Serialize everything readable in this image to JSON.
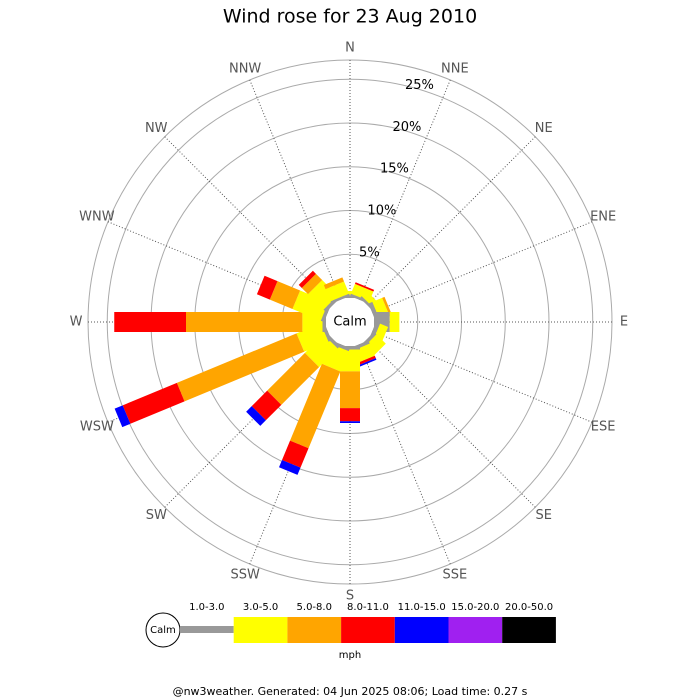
{
  "chart_data": {
    "type": "windrose",
    "title": "Wind rose for 23 Aug 2010",
    "categories": [
      "N",
      "NNE",
      "NE",
      "ENE",
      "E",
      "ESE",
      "SE",
      "SSE",
      "S",
      "SSW",
      "SW",
      "WSW",
      "W",
      "WNW",
      "NW",
      "NNW"
    ],
    "series": [
      {
        "name": "1.0-3.0",
        "color": "#999999",
        "values": [
          0.3,
          0.3,
          0.3,
          0.5,
          1.8,
          0.5,
          0.4,
          0.4,
          0.4,
          0.4,
          0.4,
          0.4,
          0.4,
          0.4,
          0.4,
          0.3
        ]
      },
      {
        "name": "3.0-5.0",
        "color": "#ffff00",
        "values": [
          0.5,
          1.2,
          0.8,
          1.2,
          1.1,
          1.0,
          1.5,
          1.5,
          2.5,
          2.5,
          3.0,
          3.0,
          2.3,
          3.5,
          2.5,
          1.5
        ]
      },
      {
        "name": "5.0-8.0",
        "color": "#ffa500",
        "values": [
          0,
          0,
          0,
          0.3,
          0,
          0,
          0,
          0,
          4.2,
          9.5,
          6.1,
          14.8,
          13.3,
          2.8,
          1.0,
          0.5
        ]
      },
      {
        "name": "8.0-11.0",
        "color": "#ff0000",
        "values": [
          0,
          0.2,
          0,
          0,
          0,
          0,
          0,
          0.3,
          1.5,
          2.4,
          2.5,
          6.7,
          8.2,
          1.6,
          0.5,
          0
        ]
      },
      {
        "name": "11.0-15.0",
        "color": "#0000ff",
        "values": [
          0,
          0,
          0,
          0,
          0,
          0,
          0,
          0.2,
          0.2,
          0.9,
          0.9,
          1.0,
          0,
          0,
          0,
          0
        ]
      },
      {
        "name": "15.0-20.0",
        "color": "#a020f0",
        "values": [
          0,
          0,
          0,
          0,
          0,
          0,
          0,
          0,
          0,
          0,
          0,
          0,
          0,
          0,
          0,
          0
        ]
      },
      {
        "name": "20.0-50.0",
        "color": "#000000",
        "values": [
          0,
          0,
          0,
          0,
          0,
          0,
          0,
          0,
          0,
          0,
          0,
          0,
          0,
          0,
          0,
          0
        ]
      }
    ],
    "rlim": [
      0,
      27.2
    ],
    "rticks": [
      {
        "value": 5,
        "label": "5%"
      },
      {
        "value": 10,
        "label": "10%"
      },
      {
        "value": 15,
        "label": "15%"
      },
      {
        "value": 20,
        "label": "20%"
      },
      {
        "value": 25,
        "label": "25%"
      }
    ],
    "calm_label": "Calm",
    "unit_label": "mph",
    "footer": "@nw3weather. Generated: 04 Jun 2025 08:06; Load time: 0.27 s"
  }
}
